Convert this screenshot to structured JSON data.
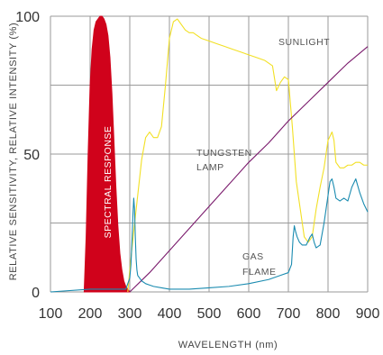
{
  "chart_data": {
    "type": "line",
    "xlabel": "WAVELENGTH (nm)",
    "ylabel": "RELATIVE SENSITIVITY, RELATIVE INTENSITY (%)",
    "xlim": [
      100,
      900
    ],
    "ylim": [
      0,
      100
    ],
    "x_ticks": [
      "100",
      "200",
      "300",
      "400",
      "500",
      "600",
      "700",
      "800",
      "900"
    ],
    "y_ticks": [
      "0",
      "50",
      "100"
    ],
    "grid": true,
    "annotations": {
      "spectral": "SPECTRAL RESPONSE",
      "sunlight": "SUNLIGHT",
      "tungsten": [
        "TUNGSTEN",
        "LAMP"
      ],
      "gas": [
        "GAS",
        "FLAME"
      ]
    },
    "series": [
      {
        "key": "spectral_response",
        "color": "#d0021b",
        "style": "filled",
        "x": [
          185,
          190,
          195,
          200,
          205,
          210,
          215,
          220,
          225,
          230,
          235,
          240,
          245,
          250,
          255,
          260,
          265,
          270,
          275,
          280,
          285,
          290,
          295,
          300
        ],
        "y": [
          0,
          20,
          50,
          75,
          88,
          95,
          98,
          99,
          100,
          100,
          99,
          97,
          93,
          85,
          72,
          55,
          38,
          24,
          14,
          8,
          4,
          2,
          1,
          0
        ]
      },
      {
        "key": "sunlight",
        "color": "#f2e024",
        "style": "line",
        "x": [
          295,
          300,
          310,
          320,
          330,
          340,
          350,
          360,
          370,
          380,
          390,
          400,
          410,
          420,
          430,
          440,
          450,
          460,
          470,
          480,
          500,
          520,
          540,
          560,
          580,
          600,
          620,
          640,
          660,
          670,
          680,
          690,
          700,
          710,
          720,
          730,
          740,
          750,
          760,
          770,
          780,
          790,
          800,
          810,
          815,
          820,
          830,
          840,
          850,
          860,
          870,
          880,
          890,
          900
        ],
        "y": [
          0,
          8,
          22,
          35,
          48,
          56,
          58,
          56,
          56,
          60,
          75,
          92,
          98,
          99,
          97,
          95,
          94,
          94,
          93,
          92,
          91,
          90,
          89,
          88,
          87,
          86,
          85,
          84,
          82,
          73,
          76,
          78,
          77,
          60,
          40,
          30,
          20,
          18,
          20,
          30,
          38,
          45,
          55,
          58,
          55,
          47,
          45,
          45,
          46,
          46,
          47,
          47,
          46,
          46
        ]
      },
      {
        "key": "tungsten_lamp",
        "color": "#7a1a6c",
        "style": "line",
        "x": [
          300,
          350,
          400,
          450,
          500,
          550,
          600,
          650,
          700,
          750,
          800,
          850,
          900
        ],
        "y": [
          0,
          7,
          15,
          23,
          31,
          39,
          47,
          54,
          62,
          69,
          76,
          83,
          89
        ]
      },
      {
        "key": "gas_flame",
        "color": "#1a8bb0",
        "style": "line",
        "x": [
          100,
          200,
          250,
          280,
          290,
          295,
          300,
          303,
          306,
          308,
          310,
          312,
          314,
          316,
          318,
          320,
          325,
          330,
          340,
          350,
          360,
          380,
          400,
          420,
          450,
          500,
          550,
          600,
          650,
          680,
          700,
          708,
          712,
          715,
          718,
          722,
          728,
          735,
          745,
          755,
          760,
          765,
          770,
          780,
          790,
          800,
          805,
          810,
          815,
          820,
          830,
          840,
          850,
          860,
          870,
          880,
          890,
          900
        ],
        "y": [
          0,
          1,
          1,
          1,
          1,
          3,
          5,
          10,
          20,
          28,
          34,
          30,
          20,
          12,
          8,
          6,
          5,
          4,
          3,
          2.5,
          2,
          1.5,
          1,
          1,
          1,
          1.5,
          2,
          3,
          4.5,
          6,
          7,
          10,
          20,
          24,
          22,
          20,
          18,
          17,
          17,
          20,
          21,
          18,
          16,
          17,
          25,
          35,
          40,
          41,
          38,
          34,
          33,
          34,
          33,
          38,
          41,
          36,
          32,
          29
        ]
      }
    ]
  }
}
